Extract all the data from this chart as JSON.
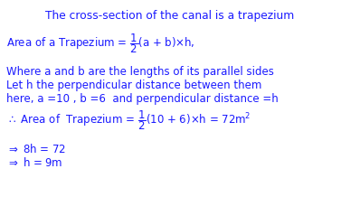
{
  "bg_color": "#ffffff",
  "text_color": "#1a1aff",
  "title": "The cross-section of the canal is a trapezium",
  "line2": "Where a and b are the lengths of its parallel sides",
  "line3": "Let h the perpendicular distance between them",
  "line4": "here, a =10 , b =6  and perpendicular distance =h",
  "line6": "8h = 72",
  "line7": "h = 9m",
  "body_fontsize": 8.5,
  "title_fontsize": 8.8
}
